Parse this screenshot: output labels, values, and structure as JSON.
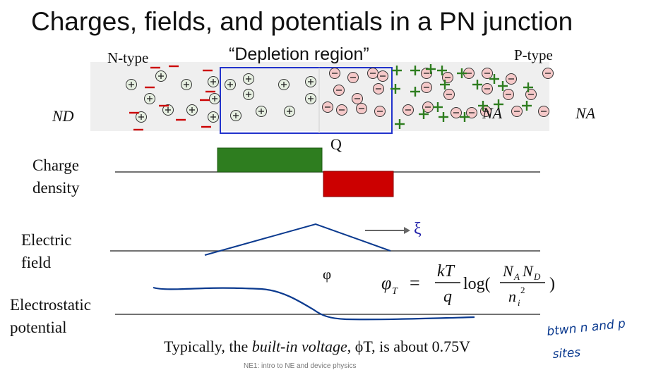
{
  "slide": {
    "title": "Charges, fields, and potentials in a PN junction",
    "labels": {
      "n_type": "N-type",
      "p_type": "P-type",
      "depletion_region": "“Depletion region”",
      "nd": "ND",
      "na_inner": "NA",
      "na_outer": "NA",
      "q": "Q",
      "phi": "φ",
      "xi": "ξ"
    },
    "row_labels": {
      "charge_density": [
        "Charge",
        "density"
      ],
      "electric_field": [
        "Electric",
        "field"
      ],
      "electrostatic_potential": [
        "Electrostatic",
        "potential"
      ]
    },
    "equation": {
      "lhs": "φ",
      "lhs_sub": "T",
      "num": "kT",
      "den": "q",
      "func": "log(",
      "frac_num_1": "N",
      "frac_num_1_sub": "A",
      "frac_num_2": "N",
      "frac_num_2_sub": "D",
      "frac_den": "n",
      "frac_den_sub": "i",
      "frac_den_sup": "2",
      "close": ")"
    },
    "bottom_text": {
      "prefix": "Typically, the ",
      "emph": "built-in voltage",
      "suffix": ", ϕT, is about 0.75V"
    },
    "handwritten_note": [
      "btwn n and p",
      "sites"
    ],
    "footer": "NE1: intro to NE and device physics",
    "colors": {
      "positive_charge": "#2e7d1f",
      "negative_charge": "#cc0000",
      "depletion_box": "#2233cc",
      "ink": "#0b3a8f"
    }
  }
}
